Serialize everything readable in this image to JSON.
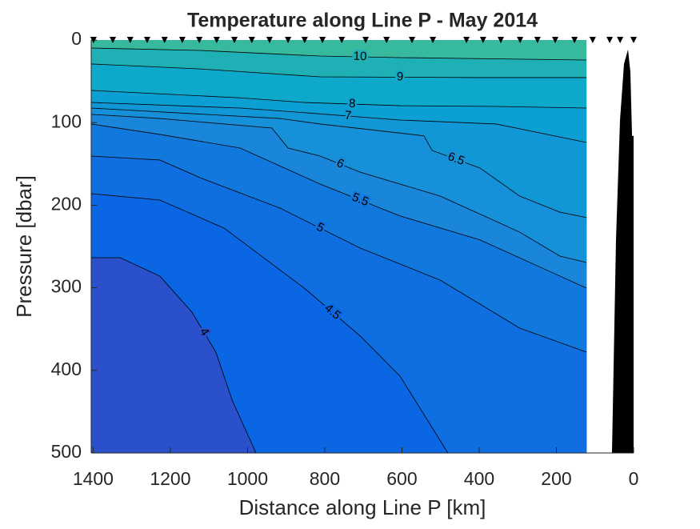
{
  "chart_data": {
    "type": "contour",
    "title": "Temperature along Line P - May 2014",
    "xlabel": "Distance along Line P [km]",
    "ylabel": "Pressure [dbar]",
    "xlim": [
      0,
      1405
    ],
    "ylim": [
      0,
      500
    ],
    "x_reversed": true,
    "y_reversed": true,
    "xticks": [
      0,
      200,
      400,
      600,
      800,
      1000,
      1200,
      1400
    ],
    "yticks": [
      0,
      100,
      200,
      300,
      400,
      500
    ],
    "fill_above_color": "#36b99c",
    "series": [
      {
        "level": 10,
        "color": "#1fb0b5",
        "x": [
          1405,
          1123,
          812,
          605,
          122
        ],
        "y": [
          9.7,
          12.6,
          19.4,
          21.3,
          24.2
        ]
      },
      {
        "level": 9,
        "color": "#0ea8ca",
        "x": [
          1405,
          1123,
          812,
          398,
          122
        ],
        "y": [
          29,
          35,
          44.6,
          45.5,
          45.5
        ]
      },
      {
        "level": 8,
        "color": "#0b9fd3",
        "x": [
          1405,
          1019,
          853,
          605,
          356,
          122
        ],
        "y": [
          61,
          70,
          75.6,
          79.5,
          80.4,
          82.4
        ]
      },
      {
        "level": 7,
        "color": "#1196d6",
        "x": [
          1405,
          1019,
          874,
          605,
          356,
          122
        ],
        "y": [
          75.6,
          82.4,
          87.2,
          96.9,
          101.7,
          124
        ]
      },
      {
        "level": 6.5,
        "color": "#1690d8",
        "x": [
          1405,
          916,
          812,
          543,
          522,
          398,
          295,
          191,
          122
        ],
        "y": [
          82.4,
          95,
          101.7,
          116,
          133.7,
          155,
          189,
          208.4,
          215
        ]
      },
      {
        "level": 6,
        "color": "#1a86da",
        "x": [
          1405,
          1227,
          937,
          895,
          812,
          708,
          501,
          295,
          191,
          122
        ],
        "y": [
          90,
          95,
          106.6,
          130.8,
          140.5,
          160,
          189,
          232.6,
          261.6,
          269.4
        ]
      },
      {
        "level": 5.5,
        "color": "#1179dd",
        "x": [
          1405,
          1227,
          1019,
          812,
          605,
          398,
          191,
          122
        ],
        "y": [
          101.7,
          114.3,
          130.8,
          174.4,
          213,
          242,
          285.8,
          300.4
        ]
      },
      {
        "level": 5,
        "color": "#0f6fe0",
        "x": [
          1405,
          1227,
          1123,
          916,
          708,
          501,
          295,
          122
        ],
        "y": [
          140.5,
          145.3,
          166.7,
          203.5,
          251.9,
          290.7,
          348.8,
          377.9
        ]
      },
      {
        "level": 4.5,
        "color": "#0a66e2",
        "x": [
          1405,
          1227,
          1061,
          853,
          708,
          605,
          481
        ],
        "y": [
          186,
          193.8,
          227.7,
          300.4,
          358.5,
          407,
          500
        ]
      },
      {
        "level": 4,
        "color": "#2a50cc",
        "x": [
          1405,
          1330,
          1227,
          1144,
          1082,
          1040,
          978
        ],
        "y": [
          263.6,
          263.6,
          285.9,
          329.5,
          377.9,
          436,
          500
        ]
      }
    ],
    "stations": [
      1399,
      1349,
      1304,
      1260,
      1215,
      1169,
      1125,
      1080,
      1034,
      989,
      943,
      895,
      852,
      806,
      756,
      694,
      640,
      574,
      520,
      433,
      390,
      344,
      294,
      249,
      203,
      153,
      106,
      62,
      35,
      0
    ],
    "bathymetry": {
      "color": "#000000",
      "x": [
        56,
        45.6,
        35.2,
        24.9,
        14.5,
        8.3,
        4.1,
        0,
        0
      ],
      "y": [
        500,
        242,
        97,
        29,
        11.6,
        38.8,
        116,
        116,
        500
      ]
    }
  }
}
